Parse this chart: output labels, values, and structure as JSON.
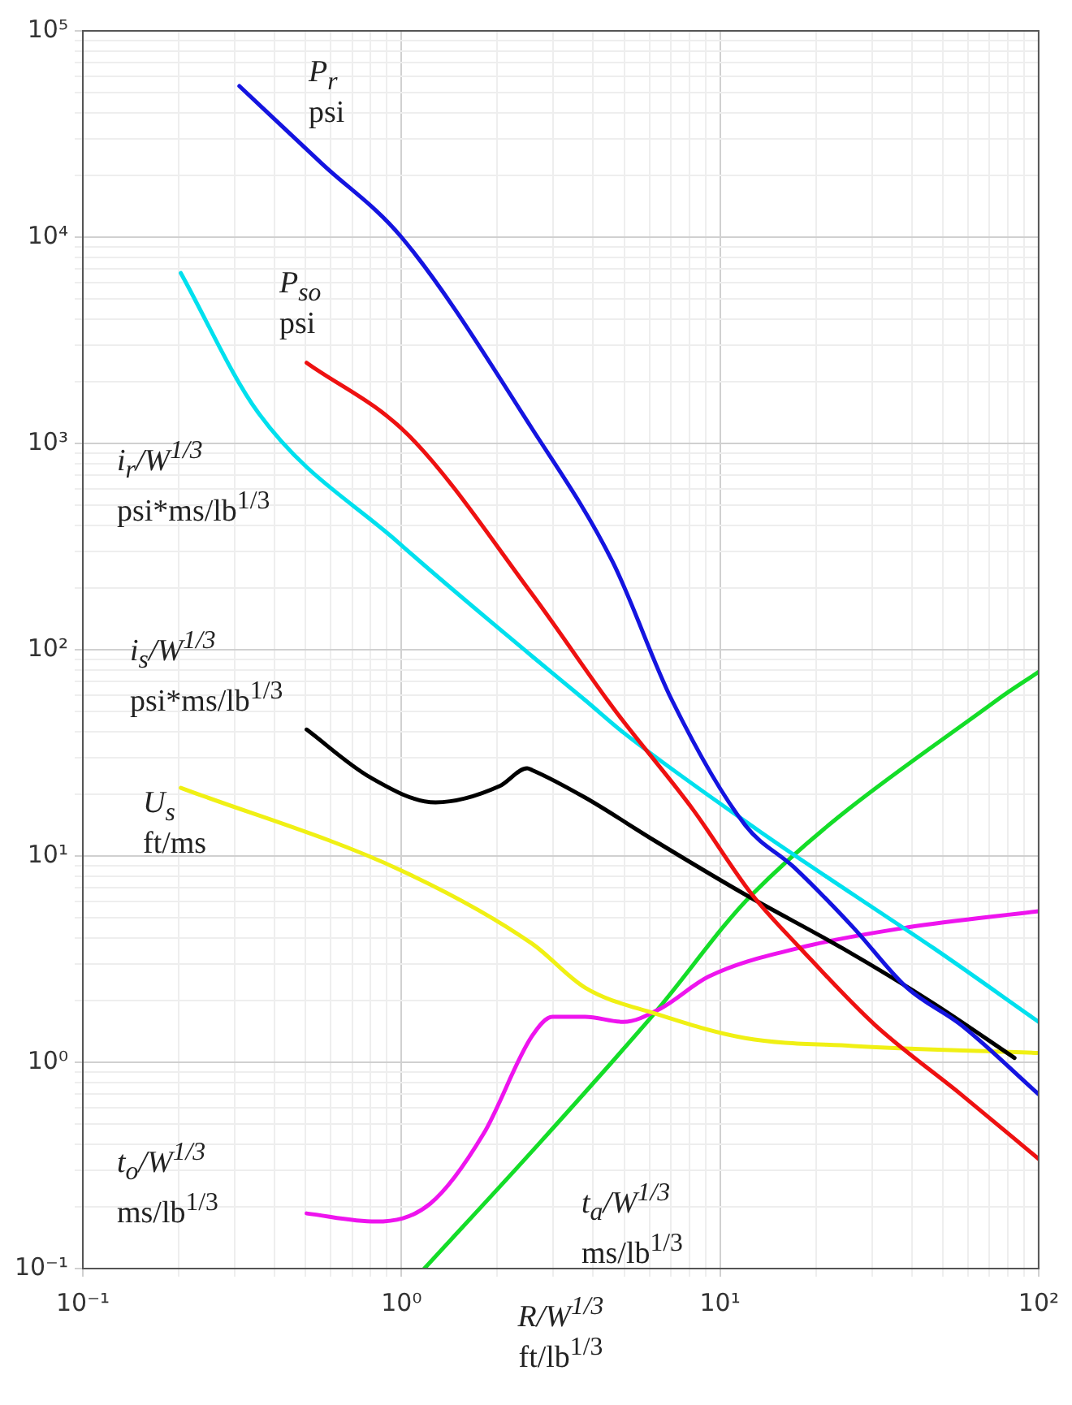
{
  "chart_data": {
    "type": "line",
    "xlabel": "R/W$^{1/3}$\nft/lb$^{1/3}$",
    "log": "xy",
    "grid": true,
    "legend": false,
    "marker": "none",
    "line_style": "solid",
    "xlim": [
      0.1,
      100
    ],
    "ylim": [
      0.1,
      100000
    ],
    "xticks": [
      {
        "value": 0.1,
        "label": "10⁻¹"
      },
      {
        "value": 0.2,
        "label": null
      },
      {
        "value": 0.3,
        "label": null
      },
      {
        "value": 0.4,
        "label": null
      },
      {
        "value": 0.5,
        "label": null
      },
      {
        "value": 0.6,
        "label": null
      },
      {
        "value": 0.7,
        "label": null
      },
      {
        "value": 0.8,
        "label": null
      },
      {
        "value": 0.9,
        "label": null
      },
      {
        "value": 1,
        "label": "10⁰"
      },
      {
        "value": 2,
        "label": null
      },
      {
        "value": 3,
        "label": null
      },
      {
        "value": 4,
        "label": null
      },
      {
        "value": 5,
        "label": null
      },
      {
        "value": 6,
        "label": null
      },
      {
        "value": 7,
        "label": null
      },
      {
        "value": 8,
        "label": null
      },
      {
        "value": 9,
        "label": null
      },
      {
        "value": 10,
        "label": "10¹"
      },
      {
        "value": 20,
        "label": null
      },
      {
        "value": 30,
        "label": null
      },
      {
        "value": 40,
        "label": null
      },
      {
        "value": 50,
        "label": null
      },
      {
        "value": 60,
        "label": null
      },
      {
        "value": 70,
        "label": null
      },
      {
        "value": 80,
        "label": null
      },
      {
        "value": 90,
        "label": null
      },
      {
        "value": 100,
        "label": "10²"
      }
    ],
    "yticks": [
      {
        "value": 0.1,
        "label": "10⁻¹"
      },
      {
        "value": 0.2,
        "label": null
      },
      {
        "value": 0.3,
        "label": null
      },
      {
        "value": 0.4,
        "label": null
      },
      {
        "value": 0.5,
        "label": null
      },
      {
        "value": 0.6,
        "label": null
      },
      {
        "value": 0.7,
        "label": null
      },
      {
        "value": 0.8,
        "label": null
      },
      {
        "value": 0.9,
        "label": null
      },
      {
        "value": 1,
        "label": "10⁰"
      },
      {
        "value": 2,
        "label": null
      },
      {
        "value": 3,
        "label": null
      },
      {
        "value": 4,
        "label": null
      },
      {
        "value": 5,
        "label": null
      },
      {
        "value": 6,
        "label": null
      },
      {
        "value": 7,
        "label": null
      },
      {
        "value": 8,
        "label": null
      },
      {
        "value": 9,
        "label": null
      },
      {
        "value": 10,
        "label": "10¹"
      },
      {
        "value": 20,
        "label": null
      },
      {
        "value": 30,
        "label": null
      },
      {
        "value": 40,
        "label": null
      },
      {
        "value": 50,
        "label": null
      },
      {
        "value": 60,
        "label": null
      },
      {
        "value": 70,
        "label": null
      },
      {
        "value": 80,
        "label": null
      },
      {
        "value": 90,
        "label": null
      },
      {
        "value": 100,
        "label": "10²"
      },
      {
        "value": 200,
        "label": null
      },
      {
        "value": 300,
        "label": null
      },
      {
        "value": 400,
        "label": null
      },
      {
        "value": 500,
        "label": null
      },
      {
        "value": 600,
        "label": null
      },
      {
        "value": 700,
        "label": null
      },
      {
        "value": 800,
        "label": null
      },
      {
        "value": 900,
        "label": null
      },
      {
        "value": 1000,
        "label": "10³"
      },
      {
        "value": 2000,
        "label": null
      },
      {
        "value": 3000,
        "label": null
      },
      {
        "value": 4000,
        "label": null
      },
      {
        "value": 5000,
        "label": null
      },
      {
        "value": 6000,
        "label": null
      },
      {
        "value": 7000,
        "label": null
      },
      {
        "value": 8000,
        "label": null
      },
      {
        "value": 9000,
        "label": null
      },
      {
        "value": 10000,
        "label": "10⁴"
      },
      {
        "value": 20000,
        "label": null
      },
      {
        "value": 30000,
        "label": null
      },
      {
        "value": 40000,
        "label": null
      },
      {
        "value": 50000,
        "label": null
      },
      {
        "value": 60000,
        "label": null
      },
      {
        "value": 70000,
        "label": null
      },
      {
        "value": 80000,
        "label": null
      },
      {
        "value": 90000,
        "label": null
      },
      {
        "value": 100000,
        "label": "10⁵"
      }
    ],
    "series": [
      {
        "name": "P$_{r}$\npsi",
        "color": "#1414e0",
        "x": [
          0.31,
          0.565,
          1.0,
          2.57,
          4.6,
          7.06,
          12.0,
          17.1,
          26.2,
          38.6,
          57,
          100
        ],
        "values": [
          54000,
          22600,
          10000,
          1180,
          267,
          57,
          14.1,
          8.8,
          4.5,
          2.3,
          1.52,
          0.7
        ]
      },
      {
        "name": "P$_{so}$\npsi",
        "color": "#ee1111",
        "x": [
          0.504,
          1.05,
          2.57,
          4.43,
          4.97,
          8.2,
          12.6,
          17.9,
          30.6,
          57,
          100
        ],
        "values": [
          2460,
          1100,
          186,
          57,
          45,
          16.9,
          6.5,
          3.56,
          1.52,
          0.7,
          0.34
        ]
      },
      {
        "name": "i$_{r}$/W$^{1/3}$\npsi*ms/lb$^{1/3}$",
        "color": "#00e0ee",
        "x": [
          0.203,
          0.355,
          0.98,
          2.57,
          3.77,
          4.97,
          13.1,
          26.2,
          47,
          100
        ],
        "values": [
          6700,
          1410,
          330,
          93,
          57,
          39.7,
          13.4,
          6.5,
          3.56,
          1.57
        ]
      },
      {
        "name": "i$_{s}$/W$^{1/3}$\npsi*ms/lb$^{1/3}$",
        "color": "#000000",
        "x": [
          0.504,
          0.8,
          1.28,
          2.03,
          2.48,
          2.57,
          3.77,
          6.27,
          12.0,
          24.3,
          47,
          84
        ],
        "values": [
          41,
          24,
          18.2,
          21.8,
          26.6,
          26.1,
          19.2,
          11.8,
          6.5,
          3.56,
          1.92,
          1.05
        ]
      },
      {
        "name": "U$_{s}$\nft/ms",
        "color": "#f0f014",
        "x": [
          0.203,
          1,
          2.57,
          3.77,
          6.27,
          12,
          26.2,
          100
        ],
        "values": [
          21.4,
          8.5,
          3.76,
          2.3,
          1.72,
          1.31,
          1.2,
          1.11
        ]
      },
      {
        "name": "t$_{o}$/W$^{1/3}$\nms/lb$^{1/3}$",
        "color": "#ee14ee",
        "x": [
          0.504,
          0.83,
          1.23,
          1.81,
          2.57,
          2.98,
          3.77,
          4.97,
          6.5,
          9.2,
          17.9,
          38.6,
          100
        ],
        "values": [
          0.185,
          0.169,
          0.206,
          0.45,
          1.34,
          1.66,
          1.66,
          1.57,
          1.82,
          2.6,
          3.6,
          4.5,
          5.4
        ]
      },
      {
        "name": "t$_{a}$/W$^{1/3}$\nms/lb$^{1/3}$",
        "color": "#14dd28",
        "x": [
          1.18,
          2.57,
          6.27,
          12.6,
          74,
          100
        ],
        "values": [
          0.1,
          0.37,
          1.75,
          6.5,
          57,
          78
        ]
      }
    ]
  }
}
